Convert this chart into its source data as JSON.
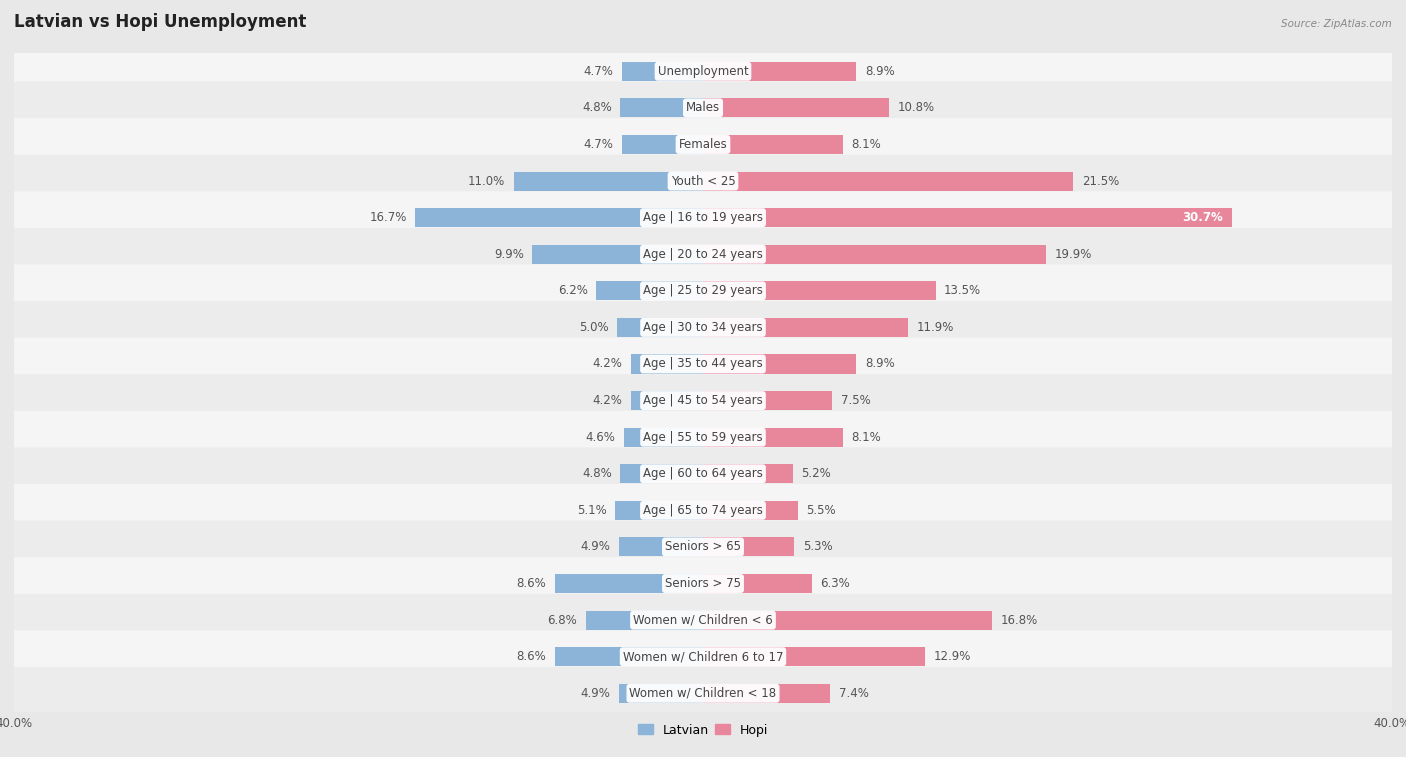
{
  "title": "Latvian vs Hopi Unemployment",
  "source": "Source: ZipAtlas.com",
  "categories": [
    "Unemployment",
    "Males",
    "Females",
    "Youth < 25",
    "Age | 16 to 19 years",
    "Age | 20 to 24 years",
    "Age | 25 to 29 years",
    "Age | 30 to 34 years",
    "Age | 35 to 44 years",
    "Age | 45 to 54 years",
    "Age | 55 to 59 years",
    "Age | 60 to 64 years",
    "Age | 65 to 74 years",
    "Seniors > 65",
    "Seniors > 75",
    "Women w/ Children < 6",
    "Women w/ Children 6 to 17",
    "Women w/ Children < 18"
  ],
  "latvian_values": [
    4.7,
    4.8,
    4.7,
    11.0,
    16.7,
    9.9,
    6.2,
    5.0,
    4.2,
    4.2,
    4.6,
    4.8,
    5.1,
    4.9,
    8.6,
    6.8,
    8.6,
    4.9
  ],
  "hopi_values": [
    8.9,
    10.8,
    8.1,
    21.5,
    30.7,
    19.9,
    13.5,
    11.9,
    8.9,
    7.5,
    8.1,
    5.2,
    5.5,
    5.3,
    6.3,
    16.8,
    12.9,
    7.4
  ],
  "latvian_color": "#8cb4d8",
  "hopi_color": "#e8879c",
  "axis_max": 40.0,
  "background_outer": "#e8e8e8",
  "background_inner_light": "#f5f5f5",
  "background_inner_dark": "#ececec",
  "bar_height": 0.52,
  "title_fontsize": 12,
  "label_fontsize": 8.5,
  "tick_fontsize": 8.5,
  "legend_fontsize": 9,
  "value_color": "#555555",
  "category_color": "#444444"
}
